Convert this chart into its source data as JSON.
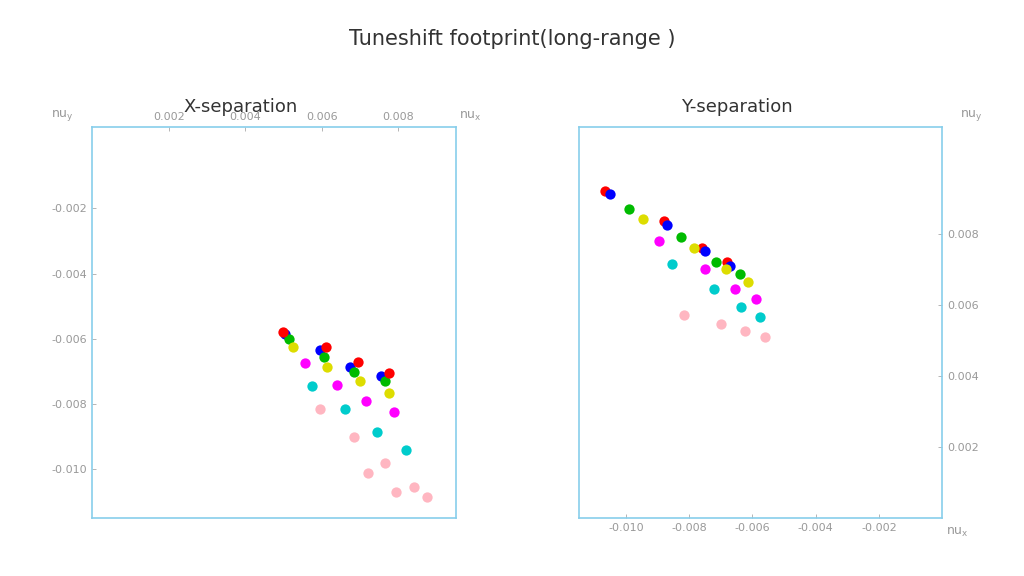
{
  "title": "Tuneshift footprint(long-range )",
  "subtitle_left": "X-separation",
  "subtitle_right": "Y-separation",
  "title_fontsize": 15,
  "subtitle_fontsize": 13,
  "background_color": "#ffffff",
  "ax_border_color": "#87CEEB",
  "tick_color": "#999999",
  "label_color": "#999999",
  "left_plot": {
    "xlim": [
      0.0,
      0.0095
    ],
    "ylim": [
      -0.0115,
      0.0005
    ],
    "xticks": [
      0.002,
      0.004,
      0.006,
      0.008
    ],
    "yticks": [
      -0.002,
      -0.004,
      -0.006,
      -0.008,
      -0.01
    ],
    "series": [
      {
        "color": "#0000FF",
        "points": [
          [
            0.00505,
            -0.00585
          ],
          [
            0.00595,
            -0.00635
          ],
          [
            0.00675,
            -0.00685
          ],
          [
            0.00755,
            -0.00715
          ]
        ]
      },
      {
        "color": "#00BB00",
        "points": [
          [
            0.00515,
            -0.006
          ],
          [
            0.00605,
            -0.00655
          ],
          [
            0.00685,
            -0.007
          ],
          [
            0.00765,
            -0.0073
          ]
        ]
      },
      {
        "color": "#FF0000",
        "points": [
          [
            0.005,
            -0.0058
          ],
          [
            0.0061,
            -0.00625
          ],
          [
            0.00695,
            -0.0067
          ],
          [
            0.00775,
            -0.00705
          ]
        ]
      },
      {
        "color": "#DDDD00",
        "points": [
          [
            0.00525,
            -0.00625
          ],
          [
            0.00615,
            -0.00685
          ],
          [
            0.007,
            -0.0073
          ],
          [
            0.00775,
            -0.00765
          ]
        ]
      },
      {
        "color": "#FF00FF",
        "points": [
          [
            0.00555,
            -0.00675
          ],
          [
            0.0064,
            -0.0074
          ],
          [
            0.00715,
            -0.0079
          ],
          [
            0.0079,
            -0.00825
          ]
        ]
      },
      {
        "color": "#00CCCC",
        "points": [
          [
            0.00575,
            -0.00745
          ],
          [
            0.0066,
            -0.00815
          ],
          [
            0.00745,
            -0.00885
          ],
          [
            0.0082,
            -0.0094
          ]
        ]
      },
      {
        "color": "#FFB6C1",
        "points": [
          [
            0.00595,
            -0.00815
          ],
          [
            0.00685,
            -0.009
          ],
          [
            0.00765,
            -0.0098
          ],
          [
            0.0084,
            -0.01055
          ],
          [
            0.0072,
            -0.0101
          ],
          [
            0.00795,
            -0.0107
          ],
          [
            0.00875,
            -0.01085
          ]
        ]
      }
    ]
  },
  "right_plot": {
    "xlim": [
      -0.0115,
      0.0
    ],
    "ylim": [
      0.0,
      0.011
    ],
    "xticks": [
      -0.01,
      -0.008,
      -0.006,
      -0.004,
      -0.002
    ],
    "yticks": [
      0.002,
      0.004,
      0.006,
      0.008
    ],
    "series": [
      {
        "color": "#FF0000",
        "points": [
          [
            -0.01065,
            0.0092
          ],
          [
            -0.0088,
            0.00835
          ],
          [
            -0.0076,
            0.0076
          ],
          [
            -0.0068,
            0.0072
          ]
        ]
      },
      {
        "color": "#0000FF",
        "points": [
          [
            -0.0105,
            0.0091
          ],
          [
            -0.0087,
            0.00825
          ],
          [
            -0.0075,
            0.0075
          ],
          [
            -0.0067,
            0.0071
          ]
        ]
      },
      {
        "color": "#00BB00",
        "points": [
          [
            -0.0099,
            0.0087
          ],
          [
            -0.00825,
            0.0079
          ],
          [
            -0.00715,
            0.0072
          ],
          [
            -0.0064,
            0.00685
          ]
        ]
      },
      {
        "color": "#DDDD00",
        "points": [
          [
            -0.00945,
            0.0084
          ],
          [
            -0.00785,
            0.0076
          ],
          [
            -0.00685,
            0.007
          ],
          [
            -0.00615,
            0.00665
          ]
        ]
      },
      {
        "color": "#FF00FF",
        "points": [
          [
            -0.00895,
            0.0078
          ],
          [
            -0.0075,
            0.007
          ],
          [
            -0.00655,
            0.00645
          ],
          [
            -0.0059,
            0.00615
          ]
        ]
      },
      {
        "color": "#00CCCC",
        "points": [
          [
            -0.00855,
            0.00715
          ],
          [
            -0.0072,
            0.00645
          ],
          [
            -0.00635,
            0.00595
          ],
          [
            -0.00575,
            0.00565
          ]
        ]
      },
      {
        "color": "#FFB6C1",
        "points": [
          [
            -0.00815,
            0.0057
          ],
          [
            -0.007,
            0.00545
          ],
          [
            -0.00625,
            0.00525
          ],
          [
            -0.0056,
            0.0051
          ]
        ]
      }
    ]
  }
}
